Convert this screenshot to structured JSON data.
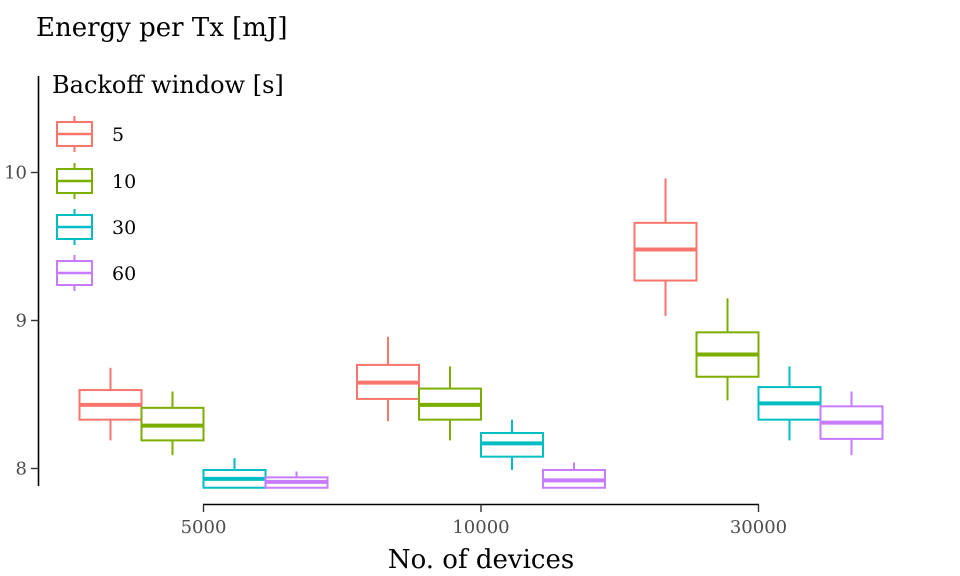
{
  "chart_data": {
    "type": "box",
    "title": "",
    "ylabel": "Energy per Tx [mJ]",
    "xlabel": "No. of devices",
    "categories": [
      "5000",
      "10000",
      "30000"
    ],
    "yticks": [
      "8",
      "9",
      "10"
    ],
    "ylim": [
      7.9,
      10.6
    ],
    "grid": false,
    "legend": {
      "title": "Backoff window [s]",
      "placement": "top-left"
    },
    "series": [
      {
        "name": "5",
        "color": "#f8766d",
        "boxes": [
          {
            "min": 8.19,
            "q1": 8.33,
            "median": 8.43,
            "q3": 8.53,
            "max": 8.68
          },
          {
            "min": 8.32,
            "q1": 8.47,
            "median": 8.58,
            "q3": 8.7,
            "max": 8.89
          },
          {
            "min": 9.03,
            "q1": 9.27,
            "median": 9.48,
            "q3": 9.66,
            "max": 9.96
          }
        ]
      },
      {
        "name": "10",
        "color": "#7cae00",
        "boxes": [
          {
            "min": 8.09,
            "q1": 8.19,
            "median": 8.29,
            "q3": 8.41,
            "max": 8.52
          },
          {
            "min": 8.19,
            "q1": 8.33,
            "median": 8.43,
            "q3": 8.54,
            "max": 8.69
          },
          {
            "min": 8.46,
            "q1": 8.62,
            "median": 8.77,
            "q3": 8.92,
            "max": 9.15
          }
        ]
      },
      {
        "name": "30",
        "color": "#00bfc4",
        "boxes": [
          {
            "min": 7.87,
            "q1": 7.87,
            "median": 7.93,
            "q3": 7.99,
            "max": 8.07
          },
          {
            "min": 7.99,
            "q1": 8.08,
            "median": 8.17,
            "q3": 8.24,
            "max": 8.33
          },
          {
            "min": 8.19,
            "q1": 8.33,
            "median": 8.44,
            "q3": 8.55,
            "max": 8.69
          }
        ]
      },
      {
        "name": "60",
        "color": "#c77cff",
        "boxes": [
          {
            "min": 7.87,
            "q1": 7.87,
            "median": 7.91,
            "q3": 7.94,
            "max": 7.98
          },
          {
            "min": 7.87,
            "q1": 7.87,
            "median": 7.92,
            "q3": 7.99,
            "max": 8.04
          },
          {
            "min": 8.09,
            "q1": 8.2,
            "median": 8.31,
            "q3": 8.42,
            "max": 8.52
          }
        ]
      }
    ]
  }
}
